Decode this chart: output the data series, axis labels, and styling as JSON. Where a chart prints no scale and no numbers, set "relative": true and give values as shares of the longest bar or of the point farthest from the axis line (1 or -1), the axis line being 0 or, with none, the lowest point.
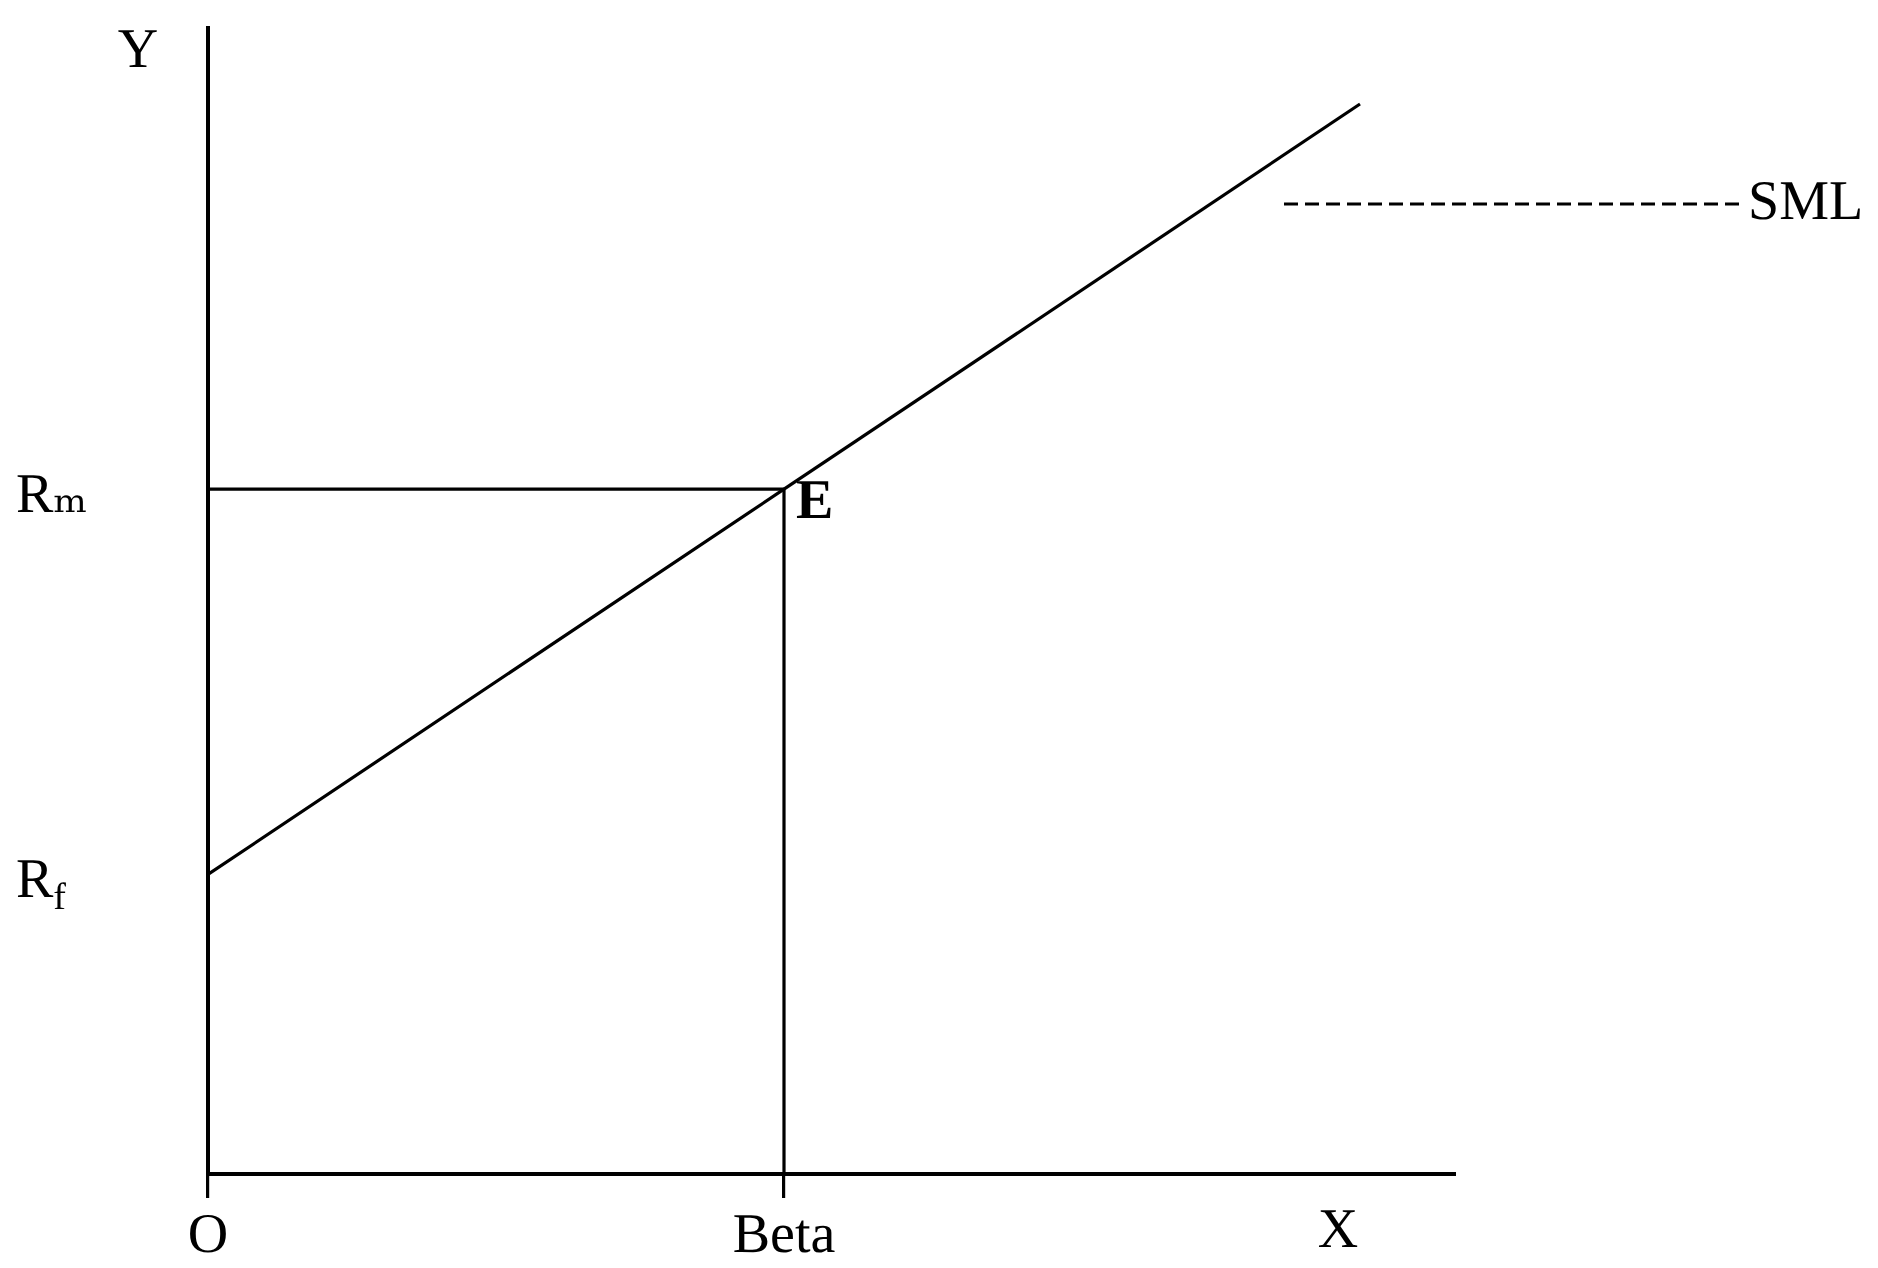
{
  "chart_data": {
    "type": "line",
    "relative": true,
    "categories": [
      "O",
      "Beta",
      null
    ],
    "xlabel": "X",
    "ylabel": "Y",
    "series": [
      {
        "name": "SML",
        "color": "#000000",
        "values": [
          0.28,
          0.64,
          1
        ]
      },
      {
        "type": "line",
        "color": "#000000",
        "x": [
          "O",
          "Beta",
          "Beta"
        ],
        "values": [
          0.64,
          0.64,
          0
        ]
      }
    ],
    "annotations": [
      {
        "text": "E",
        "x": "Beta",
        "y": 0.64
      },
      {
        "text": "Rₘ",
        "x": "O",
        "y": 0.64
      },
      {
        "text": "R$_{f}$",
        "x": "O",
        "y": 0.28
      }
    ],
    "marker": "none",
    "line_style": "solid"
  }
}
